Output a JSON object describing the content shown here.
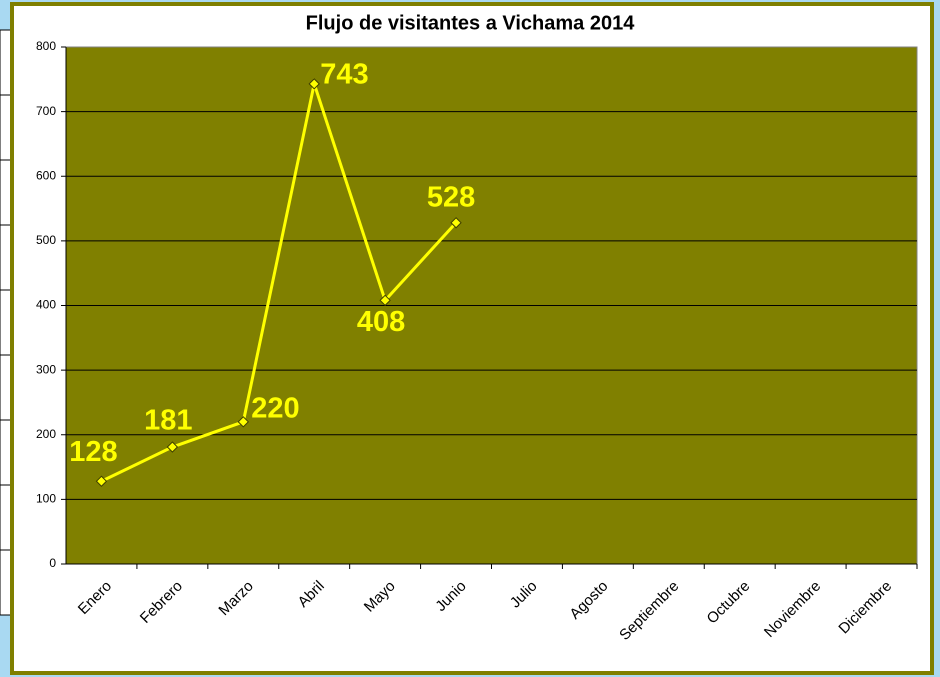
{
  "chart_data": {
    "type": "line",
    "title": "Flujo de visitantes a Vichama 2014",
    "categories": [
      "Enero",
      "Febrero",
      "Marzo",
      "Abril",
      "Mayo",
      "Junio",
      "Julio",
      "Agosto",
      "Septiembre",
      "Octubre",
      "Noviembre",
      "Diciembre"
    ],
    "series": [
      {
        "color": "#ffff00",
        "values": [
          128,
          181,
          220,
          743,
          408,
          528,
          null,
          null,
          null,
          null,
          null,
          null
        ]
      }
    ],
    "ylim": [
      0,
      800
    ],
    "yticks": [
      0,
      100,
      200,
      300,
      400,
      500,
      600,
      700,
      800
    ],
    "grid": true,
    "plot_background": "#808000"
  }
}
